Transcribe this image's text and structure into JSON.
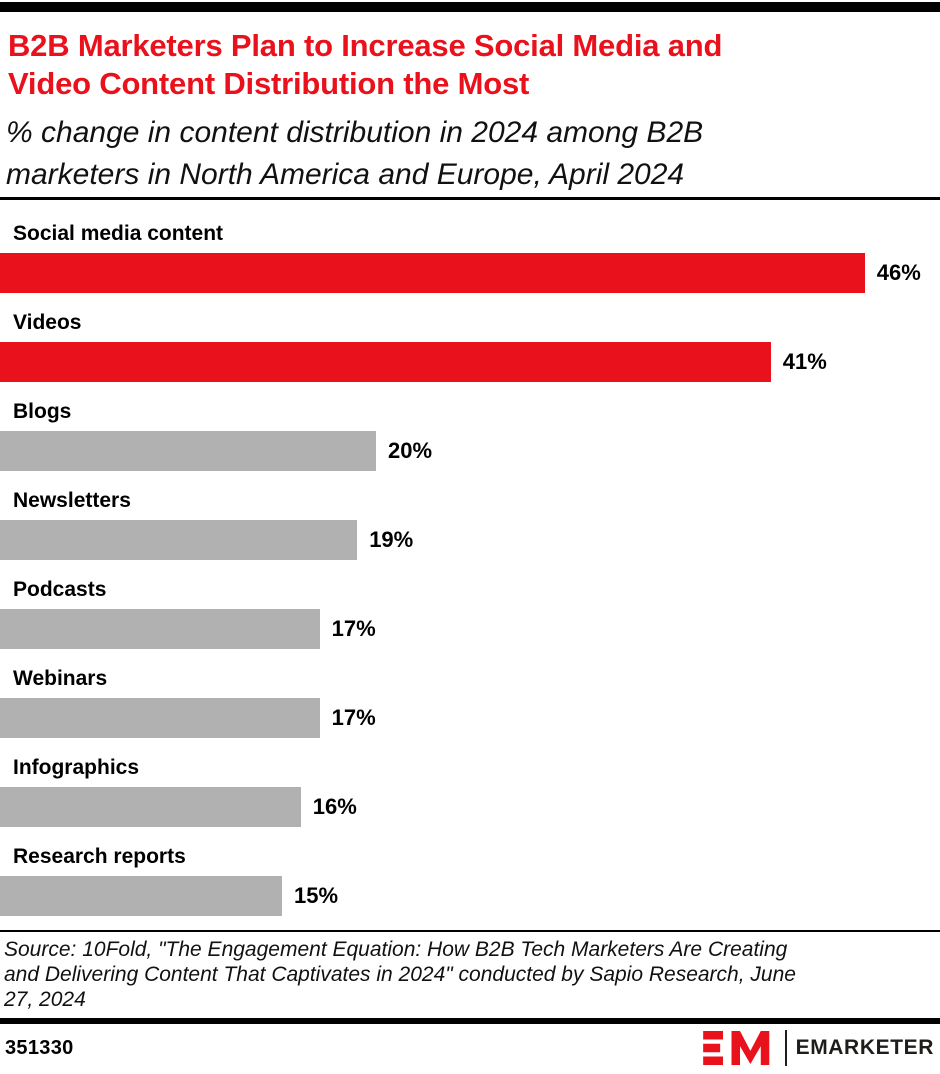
{
  "header": {
    "title_lines": [
      "B2B Marketers Plan to Increase Social Media and",
      "Video Content Distribution the Most"
    ],
    "subtitle_lines": [
      "% change in content distribution in 2024 among B2B",
      "marketers in North America and Europe, April 2024"
    ],
    "title_color": "#e8111c"
  },
  "chart_data": {
    "type": "bar",
    "orientation": "horizontal",
    "title": "B2B Marketers Plan to Increase Social Media and Video Content Distribution the Most",
    "subtitle": "% change in content distribution in 2024 among B2B marketers in North America and Europe, April 2024",
    "categories": [
      "Social media content",
      "Videos",
      "Blogs",
      "Newsletters",
      "Podcasts",
      "Webinars",
      "Infographics",
      "Research reports"
    ],
    "values": [
      46,
      41,
      20,
      19,
      17,
      17,
      16,
      15
    ],
    "rows": [
      {
        "label": "Social media content",
        "value": 46,
        "display": "46%",
        "highlight": true
      },
      {
        "label": "Videos",
        "value": 41,
        "display": "41%",
        "highlight": true
      },
      {
        "label": "Blogs",
        "value": 20,
        "display": "20%",
        "highlight": false
      },
      {
        "label": "Newsletters",
        "value": 19,
        "display": "19%",
        "highlight": false
      },
      {
        "label": "Podcasts",
        "value": 17,
        "display": "17%",
        "highlight": false
      },
      {
        "label": "Webinars",
        "value": 17,
        "display": "17%",
        "highlight": false
      },
      {
        "label": "Infographics",
        "value": 16,
        "display": "16%",
        "highlight": false
      },
      {
        "label": "Research reports",
        "value": 15,
        "display": "15%",
        "highlight": false
      }
    ],
    "xlim": [
      0,
      50
    ],
    "grid": false,
    "legend": "none",
    "value_labels": "outside-end",
    "colors": {
      "highlight": "#e8111c",
      "default": "#b1b1b1"
    }
  },
  "source": {
    "lines": [
      "Source: 10Fold, \"The Engagement Equation: How B2B Tech Marketers Are Creating",
      "and Delivering Content That Captivates in 2024\" conducted by Sapio Research, June",
      "27, 2024"
    ]
  },
  "footer": {
    "chart_id": "351330",
    "brand_name": "EMARKETER",
    "brand_color": "#e8111c"
  }
}
